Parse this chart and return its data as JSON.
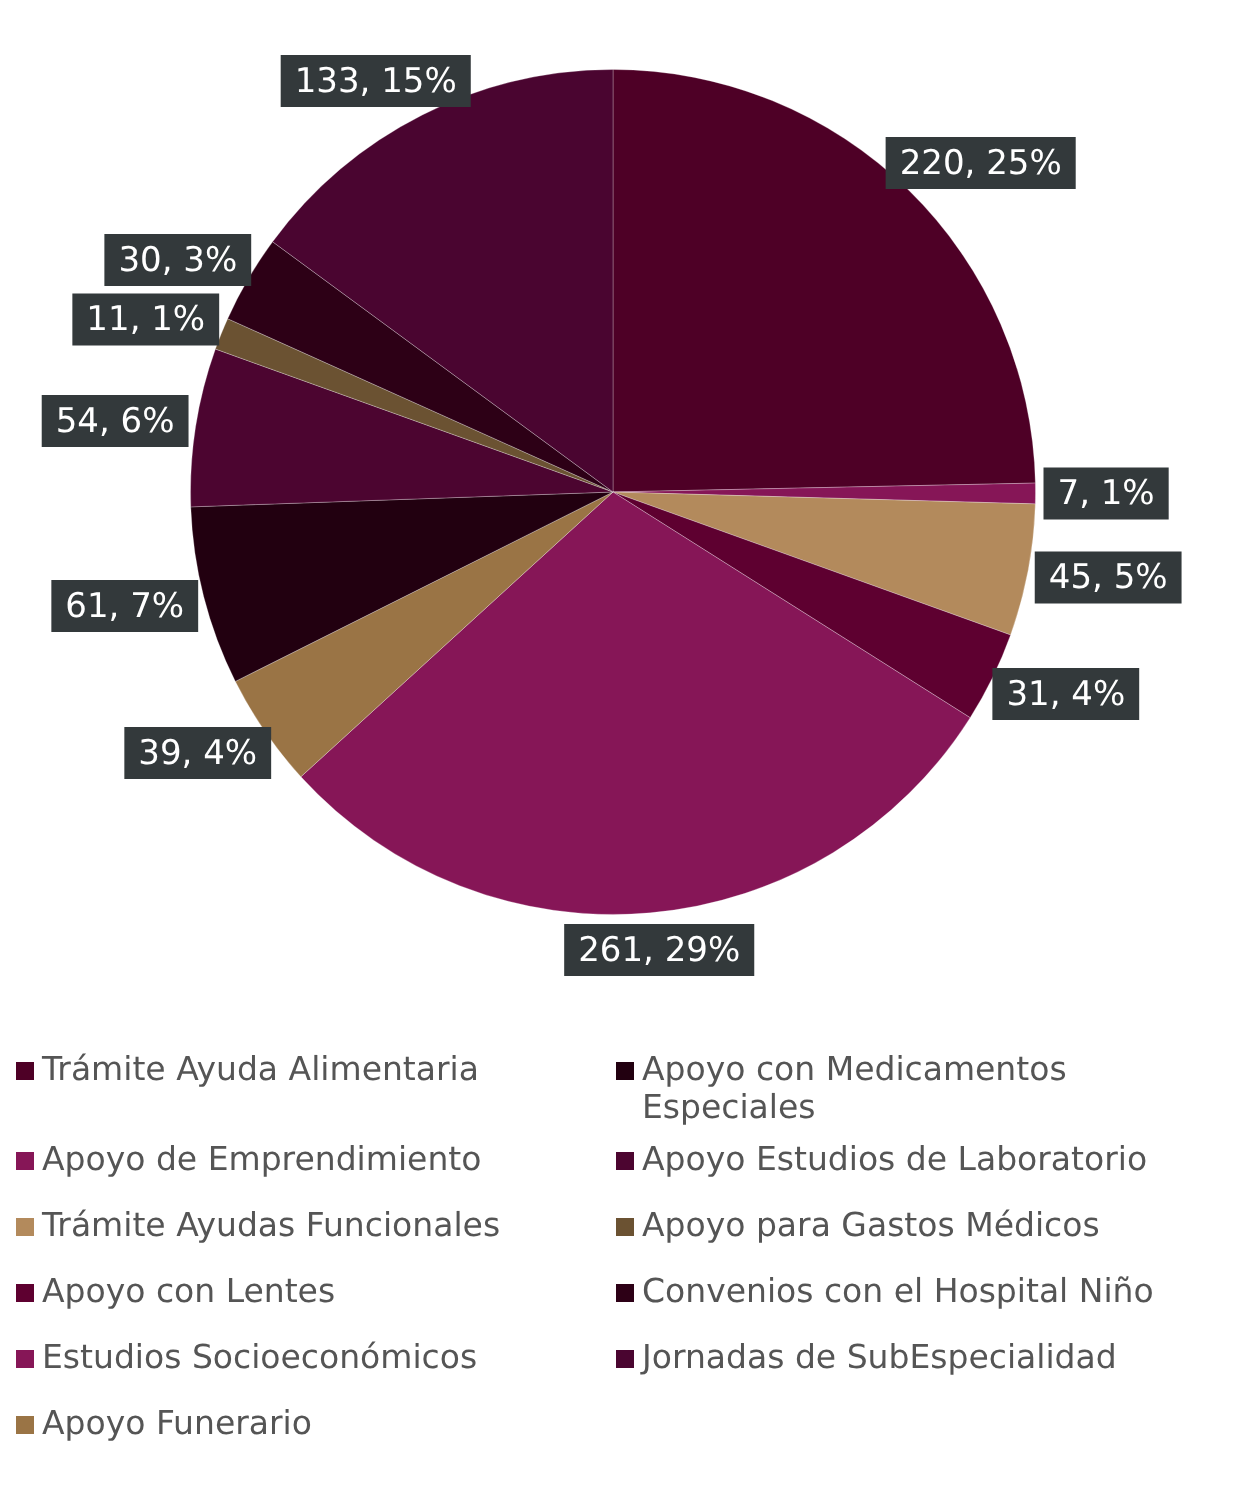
{
  "chart_data": {
    "type": "pie",
    "categories": [
      "Trámite Ayuda Alimentaria",
      "Apoyo de Emprendimiento",
      "Trámite Ayudas Funcionales",
      "Apoyo con Lentes",
      "Estudios Socioeconómicos",
      "Apoyo Funerario",
      "Apoyo con Medicamentos Especiales",
      "Apoyo Estudios de Laboratorio",
      "Apoyo para Gastos Médicos",
      "Convenios con el Hospital Niño",
      "Jornadas de SubEspecialidad"
    ],
    "values": [
      220,
      7,
      45,
      31,
      261,
      39,
      61,
      54,
      11,
      30,
      133
    ],
    "colors": [
      "#4e0026",
      "#861657",
      "#b38a5c",
      "#5e0030",
      "#861657",
      "#9a7445",
      "#220010",
      "#4c0530",
      "#6b5232",
      "#2d0016",
      "#4a0530"
    ],
    "value_labels": [
      "220, 25%",
      "7, 1%",
      "45, 5%",
      "31, 4%",
      "261, 29%",
      "39, 4%",
      "61, 7%",
      "54, 6%",
      "11, 1%",
      "30, 3%",
      "133, 15%"
    ],
    "legend": "bottom"
  }
}
